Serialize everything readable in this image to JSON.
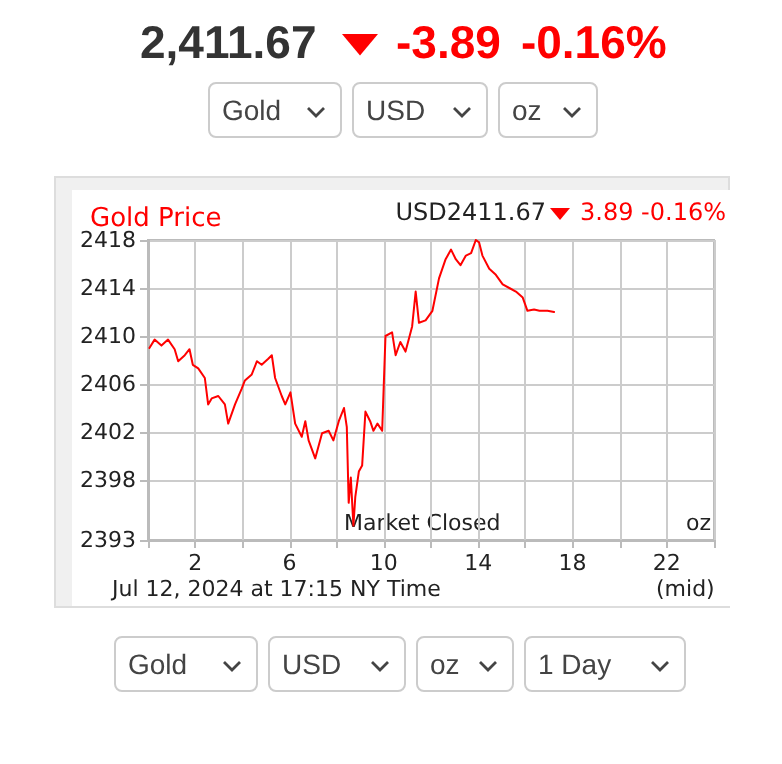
{
  "chart_data": {
    "type": "line",
    "title": "Gold Price",
    "subtitle": "USD2411.67",
    "annotations": [
      "2,411.67",
      "-3.89",
      "-0.16%",
      "Gold",
      "USD",
      "oz",
      "3.89 -0.16%",
      "Market Closed",
      "oz",
      "Jul 12, 2024 at 17:15 NY Time",
      "(mid)",
      "Gold",
      "USD",
      "oz",
      "1 Day"
    ],
    "x": [
      0.06,
      0.28,
      0.57,
      0.85,
      1.13,
      1.28,
      1.56,
      1.76,
      1.9,
      2.13,
      2.41,
      2.55,
      2.7,
      2.98,
      3.26,
      3.4,
      3.69,
      3.97,
      4.11,
      4.4,
      4.62,
      4.82,
      5.1,
      5.25,
      5.39,
      5.67,
      5.82,
      6.04,
      6.24,
      6.52,
      6.67,
      6.81,
      7.09,
      7.38,
      7.66,
      7.86,
      8.09,
      8.31,
      8.43,
      8.51,
      8.6,
      8.71,
      8.79,
      8.94,
      9.08,
      9.22,
      9.42,
      9.56,
      9.73,
      9.93,
      10.07,
      10.35,
      10.5,
      10.7,
      10.92,
      11.2,
      11.35,
      11.49,
      11.77,
      12.06,
      12.34,
      12.62,
      12.85,
      13.05,
      13.25,
      13.48,
      13.7,
      13.9,
      14.04,
      14.18,
      14.47,
      14.75,
      15.04,
      15.32,
      15.6,
      15.89,
      16.09,
      16.37,
      16.6,
      16.94,
      17.22
    ],
    "series": [
      {
        "color": "#ff0000",
        "values": [
          2409.0,
          2409.7,
          2409.2,
          2409.7,
          2408.9,
          2407.9,
          2408.4,
          2408.9,
          2407.6,
          2407.3,
          2406.5,
          2404.3,
          2404.8,
          2405.0,
          2404.3,
          2402.7,
          2404.3,
          2405.6,
          2406.3,
          2406.8,
          2407.9,
          2407.6,
          2408.1,
          2408.4,
          2406.5,
          2405.0,
          2404.3,
          2405.3,
          2402.7,
          2401.6,
          2402.9,
          2401.3,
          2399.8,
          2401.9,
          2402.1,
          2401.3,
          2402.9,
          2404.0,
          2402.4,
          2396.1,
          2398.2,
          2394.2,
          2396.6,
          2398.7,
          2399.2,
          2403.7,
          2402.9,
          2402.1,
          2402.7,
          2402.1,
          2410.0,
          2410.3,
          2408.4,
          2409.5,
          2408.7,
          2410.8,
          2413.7,
          2411.1,
          2411.3,
          2412.1,
          2414.8,
          2416.4,
          2417.2,
          2416.4,
          2415.9,
          2416.7,
          2416.9,
          2418.0,
          2417.8,
          2416.7,
          2415.6,
          2415.1,
          2414.3,
          2414.0,
          2413.7,
          2413.2,
          2412.1,
          2412.2,
          2412.1,
          2412.1,
          2412.0
        ]
      }
    ],
    "xlim": [
      0,
      24
    ],
    "xticks": [
      {
        "value": 0,
        "label": null
      },
      2,
      {
        "value": 4,
        "label": null
      },
      6,
      {
        "value": 8,
        "label": null
      },
      10,
      {
        "value": 12,
        "label": null
      },
      14,
      {
        "value": 16,
        "label": null
      },
      18,
      {
        "value": 20,
        "label": null
      },
      22,
      {
        "value": 24,
        "label": null
      }
    ],
    "ylim": [
      2393,
      2418
    ],
    "yticks": [
      2393,
      2398,
      2402,
      2406,
      2410,
      2414,
      2418
    ],
    "grid": true,
    "marker": "none",
    "line_style": "solid"
  }
}
